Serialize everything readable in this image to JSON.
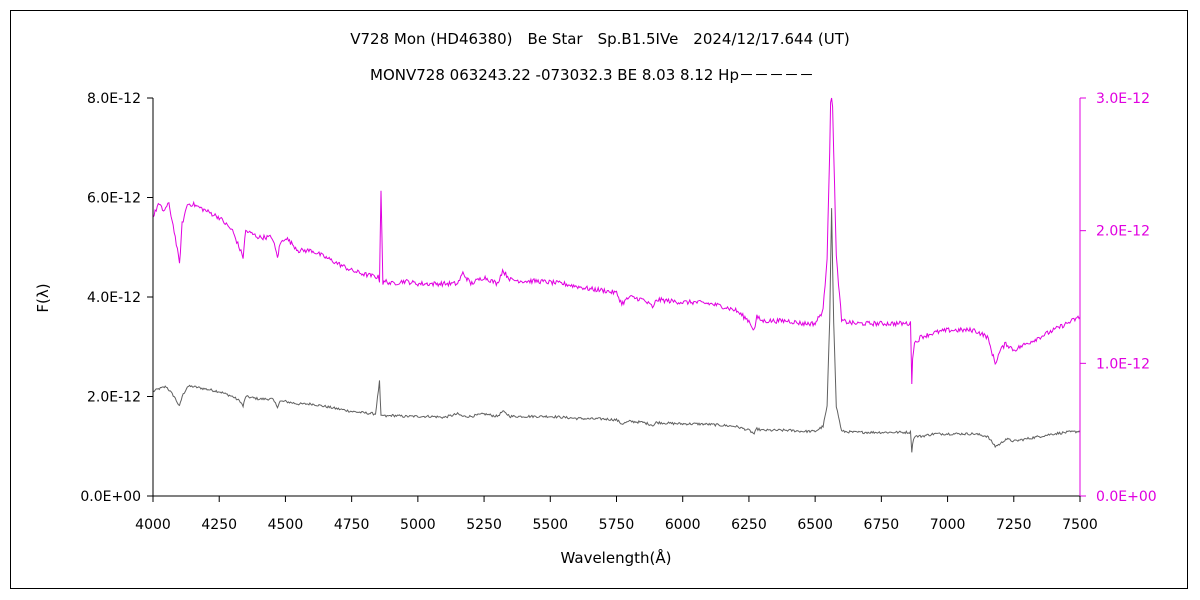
{
  "chart_data": {
    "type": "line",
    "title": "V728 Mon (HD46380)　Be Star　Sp.B1.5IVe　2024/12/17.644 (UT)",
    "subtitle": "MONV728 063243.22 -073032.3 BE 8.03 8.12 Hp－－－－－",
    "xlabel": "Wavelength(Å)",
    "ylabel": "F(λ)",
    "xlim": [
      4000,
      7500
    ],
    "ylim_left": [
      0,
      8e-12
    ],
    "ylim_right": [
      0,
      3e-12
    ],
    "x_ticks": [
      "4000",
      "4250",
      "4500",
      "4750",
      "5000",
      "5250",
      "5500",
      "5750",
      "6000",
      "6250",
      "6500",
      "6750",
      "7000",
      "7250",
      "7500"
    ],
    "y_ticks_left": [
      "0.0E+00",
      "2.0E-12",
      "4.0E-12",
      "6.0E-12",
      "8.0E-12"
    ],
    "y_ticks_right": [
      "0.0E+00",
      "1.0E-12",
      "2.0E-12",
      "3.0E-12"
    ],
    "grid": false,
    "colors": {
      "series_left": "#606060",
      "series_right": "#e000e0",
      "right_axis": "#e000e0"
    },
    "series": [
      {
        "axis": "left",
        "x": [
          4000,
          4020,
          4050,
          4080,
          4100,
          4110,
          4130,
          4150,
          4200,
          4250,
          4300,
          4330,
          4340,
          4350,
          4400,
          4450,
          4470,
          4480,
          4500,
          4550,
          4600,
          4650,
          4700,
          4750,
          4800,
          4840,
          4855,
          4861,
          4868,
          4880,
          4900,
          4950,
          5000,
          5050,
          5100,
          5150,
          5170,
          5200,
          5250,
          5300,
          5320,
          5350,
          5400,
          5450,
          5500,
          5550,
          5600,
          5650,
          5700,
          5750,
          5770,
          5800,
          5850,
          5890,
          5900,
          5950,
          6000,
          6050,
          6100,
          6150,
          6200,
          6250,
          6270,
          6280,
          6300,
          6350,
          6400,
          6450,
          6500,
          6530,
          6545,
          6555,
          6562,
          6570,
          6580,
          6600,
          6650,
          6700,
          6750,
          6800,
          6860,
          6865,
          6868,
          6875,
          6900,
          6950,
          7000,
          7050,
          7100,
          7150,
          7180,
          7200,
          7220,
          7250,
          7300,
          7350,
          7400,
          7450,
          7500
        ],
        "y": [
          2.1e-12,
          2.15e-12,
          2.2e-12,
          2e-12,
          1.8e-12,
          2e-12,
          2.2e-12,
          2.2e-12,
          2.15e-12,
          2.1e-12,
          2e-12,
          1.9e-12,
          1.8e-12,
          2e-12,
          1.95e-12,
          1.95e-12,
          1.8e-12,
          1.9e-12,
          1.9e-12,
          1.85e-12,
          1.85e-12,
          1.8e-12,
          1.75e-12,
          1.7e-12,
          1.67e-12,
          1.65e-12,
          2.3e-12,
          1.6e-12,
          1.62e-12,
          1.6e-12,
          1.62e-12,
          1.6e-12,
          1.6e-12,
          1.6e-12,
          1.58e-12,
          1.65e-12,
          1.6e-12,
          1.6e-12,
          1.65e-12,
          1.6e-12,
          1.7e-12,
          1.6e-12,
          1.6e-12,
          1.6e-12,
          1.6e-12,
          1.58e-12,
          1.56e-12,
          1.55e-12,
          1.55e-12,
          1.53e-12,
          1.45e-12,
          1.5e-12,
          1.48e-12,
          1.42e-12,
          1.48e-12,
          1.46e-12,
          1.45e-12,
          1.45e-12,
          1.44e-12,
          1.42e-12,
          1.4e-12,
          1.32e-12,
          1.25e-12,
          1.35e-12,
          1.32e-12,
          1.32e-12,
          1.32e-12,
          1.3e-12,
          1.3e-12,
          1.4e-12,
          1.8e-12,
          3.5e-12,
          5.8e-12,
          3.5e-12,
          1.8e-12,
          1.3e-12,
          1.28e-12,
          1.28e-12,
          1.28e-12,
          1.28e-12,
          1.28e-12,
          9e-13,
          1.05e-12,
          1.2e-12,
          1.2e-12,
          1.25e-12,
          1.25e-12,
          1.25e-12,
          1.25e-12,
          1.2e-12,
          1e-12,
          1.05e-12,
          1.15e-12,
          1.1e-12,
          1.15e-12,
          1.2e-12,
          1.25e-12,
          1.28e-12,
          1.3e-12
        ]
      },
      {
        "axis": "right",
        "x": [
          4000,
          4020,
          4040,
          4060,
          4080,
          4100,
          4110,
          4130,
          4150,
          4200,
          4250,
          4300,
          4320,
          4340,
          4350,
          4400,
          4450,
          4470,
          4480,
          4500,
          4550,
          4600,
          4650,
          4700,
          4750,
          4800,
          4850,
          4855,
          4861,
          4868,
          4880,
          4900,
          4950,
          5000,
          5050,
          5100,
          5150,
          5170,
          5200,
          5250,
          5300,
          5320,
          5350,
          5400,
          5450,
          5500,
          5550,
          5600,
          5650,
          5700,
          5750,
          5770,
          5800,
          5850,
          5890,
          5900,
          5950,
          6000,
          6050,
          6100,
          6150,
          6200,
          6250,
          6270,
          6280,
          6300,
          6350,
          6400,
          6450,
          6500,
          6530,
          6545,
          6555,
          6562,
          6570,
          6580,
          6600,
          6650,
          6700,
          6750,
          6800,
          6860,
          6865,
          6868,
          6875,
          6900,
          6950,
          7000,
          7050,
          7100,
          7150,
          7180,
          7200,
          7220,
          7250,
          7300,
          7350,
          7400,
          7450,
          7500
        ],
        "y": [
          2.1e-12,
          2.2e-12,
          2.15e-12,
          2.2e-12,
          2e-12,
          1.75e-12,
          2.05e-12,
          2.2e-12,
          2.2e-12,
          2.15e-12,
          2.1e-12,
          2e-12,
          1.9e-12,
          1.8e-12,
          2e-12,
          1.95e-12,
          1.95e-12,
          1.8e-12,
          1.9e-12,
          1.95e-12,
          1.85e-12,
          1.85e-12,
          1.8e-12,
          1.75e-12,
          1.7e-12,
          1.67e-12,
          1.65e-12,
          1.62e-12,
          2.3e-12,
          1.6e-12,
          1.62e-12,
          1.6e-12,
          1.62e-12,
          1.6e-12,
          1.6e-12,
          1.6e-12,
          1.6e-12,
          1.68e-12,
          1.6e-12,
          1.65e-12,
          1.6e-12,
          1.7e-12,
          1.63e-12,
          1.62e-12,
          1.62e-12,
          1.61e-12,
          1.6e-12,
          1.58e-12,
          1.56e-12,
          1.55e-12,
          1.53e-12,
          1.45e-12,
          1.5e-12,
          1.48e-12,
          1.42e-12,
          1.48e-12,
          1.47e-12,
          1.46e-12,
          1.46e-12,
          1.45e-12,
          1.43e-12,
          1.4e-12,
          1.32e-12,
          1.25e-12,
          1.35e-12,
          1.32e-12,
          1.32e-12,
          1.32e-12,
          1.3e-12,
          1.3e-12,
          1.4e-12,
          1.8e-12,
          2.6e-12,
          3.3e-12,
          2.6e-12,
          1.8e-12,
          1.32e-12,
          1.3e-12,
          1.3e-12,
          1.3e-12,
          1.3e-12,
          1.3e-12,
          8.5e-13,
          1.05e-12,
          1.15e-12,
          1.2e-12,
          1.23e-12,
          1.25e-12,
          1.25e-12,
          1.25e-12,
          1.2e-12,
          1e-12,
          1.1e-12,
          1.15e-12,
          1.1e-12,
          1.15e-12,
          1.2e-12,
          1.25e-12,
          1.3e-12,
          1.35e-12
        ]
      }
    ]
  }
}
